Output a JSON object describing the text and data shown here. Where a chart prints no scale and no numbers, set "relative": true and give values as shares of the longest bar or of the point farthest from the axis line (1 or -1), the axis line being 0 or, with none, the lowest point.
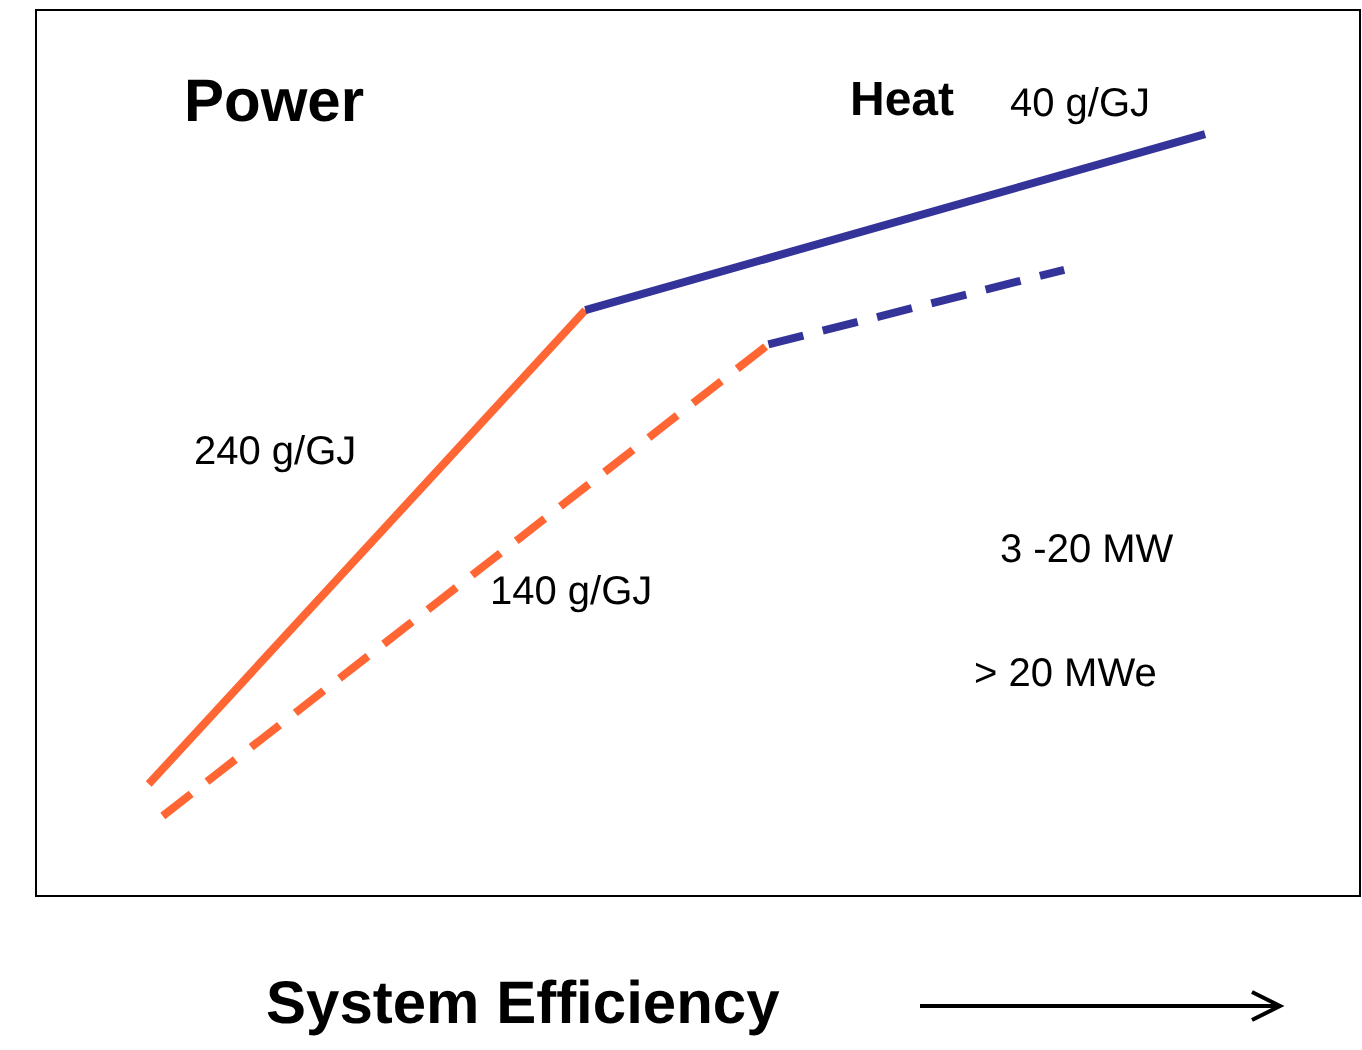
{
  "chart_data": {
    "type": "line",
    "relative": true,
    "xlabel": "System Efficiency",
    "categories": [
      null,
      null,
      null,
      null,
      null,
      null,
      null,
      null,
      null,
      null,
      null,
      null,
      null,
      null,
      null,
      null,
      null,
      null,
      null,
      null,
      null,
      null,
      null,
      null,
      null,
      null,
      null,
      null,
      null,
      null,
      null,
      null,
      null,
      null,
      null,
      null,
      null,
      null,
      null,
      null,
      null,
      null,
      null,
      null,
      null,
      null,
      null,
      null,
      null,
      null,
      null,
      null,
      null,
      null,
      null,
      null,
      null,
      null,
      null,
      null,
      null,
      null,
      null,
      null,
      null,
      null,
      null,
      null,
      null,
      null,
      null,
      null,
      null,
      null,
      null,
      null,
      null,
      null,
      null,
      null,
      null,
      null,
      null,
      null,
      null,
      null,
      null,
      null,
      null,
      null,
      null,
      null,
      null,
      null,
      null
    ],
    "series": [
      {
        "color": "#ff6633",
        "line_style": "solid",
        "values": [
          null,
          null,
          null,
          null,
          null,
          null,
          null,
          null,
          0.147,
          null,
          null,
          null,
          null,
          null,
          null,
          null,
          null,
          null,
          null,
          null,
          null,
          null,
          null,
          null,
          null,
          null,
          null,
          null,
          null,
          null,
          null,
          null,
          null,
          null,
          null,
          null,
          null,
          null,
          null,
          0.769,
          null,
          null,
          null,
          null,
          null,
          null,
          null,
          null,
          null,
          null,
          null,
          null,
          null,
          null,
          null,
          null,
          null,
          null,
          null,
          null,
          null,
          null,
          null,
          null,
          null,
          null,
          null,
          null,
          null,
          null,
          null,
          null,
          null,
          null,
          null,
          null,
          null,
          null,
          null,
          null,
          null,
          null,
          null,
          null,
          null,
          null,
          null,
          null,
          null,
          null,
          null,
          null,
          null,
          null,
          null
        ]
      },
      {
        "color": "#333399",
        "line_style": "solid",
        "values": [
          null,
          null,
          null,
          null,
          null,
          null,
          null,
          null,
          null,
          null,
          null,
          null,
          null,
          null,
          null,
          null,
          null,
          null,
          null,
          null,
          null,
          null,
          null,
          null,
          null,
          null,
          null,
          null,
          null,
          null,
          null,
          null,
          null,
          null,
          null,
          null,
          null,
          null,
          null,
          0.769,
          null,
          null,
          null,
          null,
          null,
          null,
          null,
          null,
          null,
          null,
          null,
          null,
          null,
          null,
          null,
          null,
          null,
          null,
          null,
          null,
          null,
          null,
          null,
          null,
          null,
          null,
          null,
          null,
          null,
          null,
          null,
          null,
          null,
          null,
          null,
          null,
          null,
          null,
          null,
          null,
          null,
          null,
          null,
          1,
          null,
          null,
          null,
          null,
          null,
          null,
          null,
          null,
          null,
          null,
          null
        ]
      },
      {
        "color": "#ff6633",
        "line_style": "dashed",
        "values": [
          null,
          null,
          null,
          null,
          null,
          null,
          null,
          null,
          null,
          0.105,
          null,
          null,
          null,
          null,
          null,
          null,
          null,
          null,
          null,
          null,
          null,
          null,
          null,
          null,
          null,
          null,
          null,
          null,
          null,
          null,
          null,
          null,
          null,
          null,
          null,
          null,
          null,
          null,
          null,
          null,
          null,
          null,
          null,
          null,
          null,
          null,
          null,
          null,
          null,
          null,
          null,
          null,
          0.724,
          null,
          null,
          null,
          null,
          null,
          null,
          null,
          null,
          null,
          null,
          null,
          null,
          null,
          null,
          null,
          null,
          null,
          null,
          null,
          null,
          null,
          null,
          null,
          null,
          null,
          null,
          null,
          null,
          null,
          null,
          null,
          null,
          null,
          null,
          null,
          null,
          null,
          null,
          null,
          null,
          null,
          null
        ]
      },
      {
        "color": "#333399",
        "line_style": "dashed",
        "values": [
          null,
          null,
          null,
          null,
          null,
          null,
          null,
          null,
          null,
          null,
          null,
          null,
          null,
          null,
          null,
          null,
          null,
          null,
          null,
          null,
          null,
          null,
          null,
          null,
          null,
          null,
          null,
          null,
          null,
          null,
          null,
          null,
          null,
          null,
          null,
          null,
          null,
          null,
          null,
          null,
          null,
          null,
          null,
          null,
          null,
          null,
          null,
          null,
          null,
          null,
          null,
          null,
          0.724,
          null,
          null,
          null,
          null,
          null,
          null,
          null,
          null,
          null,
          null,
          null,
          null,
          null,
          null,
          null,
          null,
          null,
          null,
          null,
          null,
          0.822,
          null,
          null,
          null,
          null,
          null,
          null,
          null,
          null,
          null,
          null,
          null,
          null,
          null,
          null,
          null,
          null,
          null,
          null,
          null,
          null,
          null
        ]
      }
    ],
    "annotations": [
      "Power",
      "Heat",
      "40 g/GJ",
      "240 g/GJ",
      "140 g/GJ",
      "3 -20 MW",
      "> 20 MWe"
    ]
  }
}
